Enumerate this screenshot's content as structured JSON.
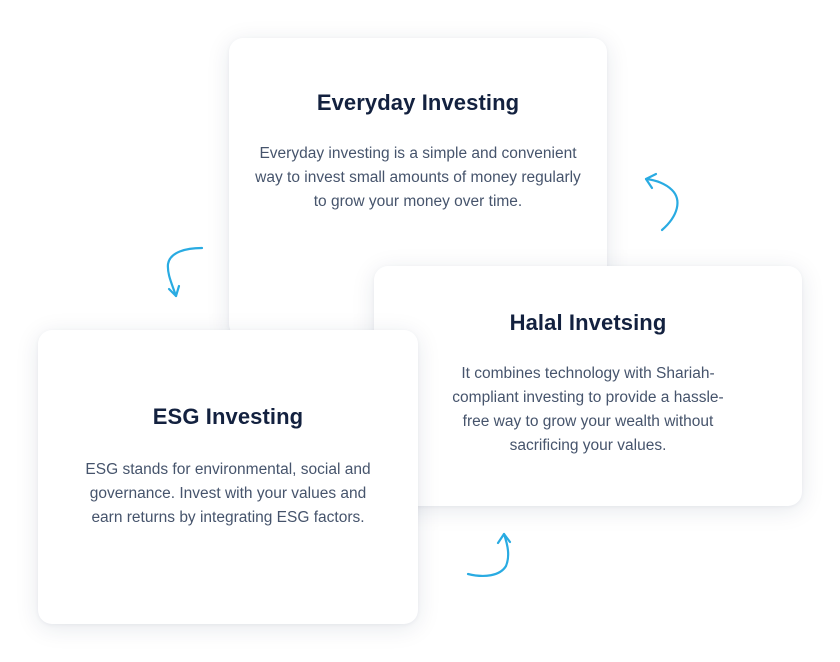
{
  "cards": {
    "everyday": {
      "title": "Everyday Investing",
      "description": "Everyday investing is a simple and convenient way to invest small amounts of money regularly to grow your money over time."
    },
    "halal": {
      "title": "Halal Invetsing",
      "description": "It combines technology with Shariah-compliant investing to provide a hassle-free way to grow your wealth without sacrificing your values."
    },
    "esg": {
      "title": "ESG Investing",
      "description": "ESG stands for environmental, social and governance. Invest with your values and earn returns by integrating ESG factors."
    }
  },
  "icons": {
    "arrow_top_right": "curved-arrow-icon",
    "arrow_left": "curved-arrow-icon",
    "arrow_bottom": "curved-arrow-icon"
  },
  "colors": {
    "title": "#13213f",
    "body_text": "#46546c",
    "arrow": "#29abe2",
    "card_background": "#ffffff"
  }
}
